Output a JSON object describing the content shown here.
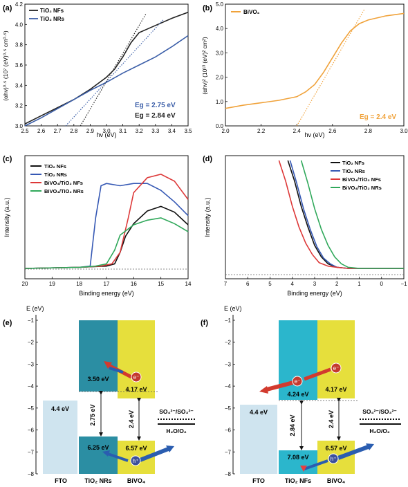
{
  "chart_data": [
    {
      "panel": "(a)",
      "type": "line",
      "xlabel": "hν (eV)",
      "ylabel": "(αhν)⁰·⁵ (10⁷ (eV)⁰·⁵ cm⁰·⁵)",
      "xlim": [
        2.5,
        3.5
      ],
      "ylim": [
        3.0,
        4.2
      ],
      "xticks": [
        "2.5",
        "2.6",
        "2.7",
        "2.8",
        "2.9",
        "3.0",
        "3.1",
        "3.2",
        "3.3",
        "3.4",
        "3.5"
      ],
      "yticks": [
        "3.0",
        "3.2",
        "3.4",
        "3.6",
        "3.8",
        "4.0",
        "4.2"
      ],
      "legend_position": "top-left",
      "series": [
        {
          "name": "TiO₂ NFs",
          "color": "#222222",
          "x": [
            2.5,
            2.6,
            2.7,
            2.8,
            2.9,
            3.0,
            3.05,
            3.1,
            3.15,
            3.2,
            3.3,
            3.4,
            3.5
          ],
          "y": [
            3.02,
            3.1,
            3.18,
            3.26,
            3.36,
            3.48,
            3.56,
            3.68,
            3.82,
            3.92,
            3.99,
            4.06,
            4.12
          ]
        },
        {
          "name": "TiO₂ NRs",
          "color": "#3b5ea8",
          "x": [
            2.5,
            2.6,
            2.7,
            2.8,
            2.9,
            3.0,
            3.1,
            3.2,
            3.3,
            3.4,
            3.5
          ],
          "y": [
            3.0,
            3.08,
            3.17,
            3.26,
            3.35,
            3.43,
            3.52,
            3.6,
            3.68,
            3.78,
            3.89
          ]
        }
      ],
      "tangents": [
        {
          "series": "TiO₂ NFs",
          "x": [
            2.84,
            3.24
          ],
          "y": [
            3.0,
            4.1
          ],
          "color": "#222222"
        },
        {
          "series": "TiO₂ NRs",
          "x": [
            2.75,
            3.35
          ],
          "y": [
            3.0,
            4.05
          ],
          "color": "#3b5ea8"
        }
      ],
      "annotations": [
        {
          "text": "Eg = 2.75 eV",
          "color": "#3b5ea8"
        },
        {
          "text": "Eg = 2.84 eV",
          "color": "#222222"
        }
      ]
    },
    {
      "panel": "(b)",
      "type": "line",
      "xlabel": "hν (eV)",
      "ylabel": "(αhν)² (10¹³ (eV)² cm²)",
      "xlim": [
        2.0,
        3.0
      ],
      "ylim": [
        0.0,
        5.0
      ],
      "xticks": [
        "2.0",
        "2.2",
        "2.4",
        "2.6",
        "2.8",
        "3.0"
      ],
      "yticks": [
        "0.0",
        "1.0",
        "2.0",
        "3.0",
        "4.0",
        "5.0"
      ],
      "legend_position": "top-left",
      "series": [
        {
          "name": "BiVO₄",
          "color": "#f0a23a",
          "x": [
            2.0,
            2.1,
            2.2,
            2.3,
            2.4,
            2.45,
            2.5,
            2.55,
            2.6,
            2.65,
            2.7,
            2.75,
            2.8,
            2.9,
            3.0
          ],
          "y": [
            0.72,
            0.85,
            0.95,
            1.05,
            1.2,
            1.4,
            1.7,
            2.2,
            2.8,
            3.4,
            3.9,
            4.2,
            4.35,
            4.52,
            4.62
          ]
        }
      ],
      "tangents": [
        {
          "series": "BiVO₄",
          "x": [
            2.4,
            2.78
          ],
          "y": [
            0.0,
            4.8
          ],
          "color": "#f0a23a"
        }
      ],
      "annotations": [
        {
          "text": "Eg = 2.4 eV",
          "color": "#f0a23a"
        }
      ]
    },
    {
      "panel": "(c)",
      "type": "line",
      "xlabel": "Binding energy (eV)",
      "ylabel": "Intensity (a.u.)",
      "xlim": [
        20,
        14
      ],
      "ylim": [
        0,
        1
      ],
      "x_reversed": true,
      "xticks": [
        "20",
        "19",
        "18",
        "17",
        "16",
        "15",
        "14"
      ],
      "legend_position": "top-left",
      "series": [
        {
          "name": "TiO₂ NFs",
          "color": "#111111",
          "x": [
            20,
            18,
            17,
            16.7,
            16.5,
            16.3,
            16.0,
            15.5,
            15.0,
            14.5,
            14.0
          ],
          "y": [
            0.06,
            0.07,
            0.08,
            0.1,
            0.2,
            0.34,
            0.45,
            0.56,
            0.6,
            0.55,
            0.44
          ]
        },
        {
          "name": "TiO₂ NRs",
          "color": "#3558b4",
          "x": [
            20,
            18,
            17.6,
            17.4,
            17.2,
            17.0,
            16.5,
            16.0,
            15.5,
            15.0,
            14.5,
            14.0
          ],
          "y": [
            0.06,
            0.07,
            0.08,
            0.5,
            0.78,
            0.8,
            0.78,
            0.8,
            0.8,
            0.74,
            0.64,
            0.52
          ]
        },
        {
          "name": "BiVO₄/TiO₂ NFs",
          "color": "#dd3838",
          "x": [
            20,
            18,
            17.2,
            16.8,
            16.5,
            16.2,
            16.0,
            15.5,
            15.0,
            14.5,
            14.0
          ],
          "y": [
            0.06,
            0.07,
            0.08,
            0.1,
            0.2,
            0.5,
            0.72,
            0.85,
            0.88,
            0.82,
            0.66
          ]
        },
        {
          "name": "BiVO₄/TiO₂ NRs",
          "color": "#2fa85a",
          "x": [
            20,
            18,
            17.4,
            17.0,
            16.7,
            16.5,
            16.0,
            15.5,
            15.0,
            14.5,
            14.0
          ],
          "y": [
            0.06,
            0.07,
            0.08,
            0.1,
            0.22,
            0.35,
            0.44,
            0.48,
            0.5,
            0.45,
            0.38
          ]
        }
      ]
    },
    {
      "panel": "(d)",
      "type": "line",
      "xlabel": "Binding energy (eV)",
      "ylabel": "Intensity (a.u.)",
      "xlim": [
        7,
        -1
      ],
      "ylim": [
        0,
        1
      ],
      "x_reversed": true,
      "xticks": [
        "7",
        "6",
        "5",
        "4",
        "3",
        "2",
        "1",
        "0",
        "−1"
      ],
      "legend_position": "top-right",
      "series": [
        {
          "name": "TiO₂ NFs",
          "color": "#111111",
          "x": [
            4.2,
            3.9,
            3.6,
            3.3,
            3.0,
            2.7,
            2.4,
            2.0,
            1.5,
            1.0,
            0.0,
            -1.0
          ],
          "y": [
            1.0,
            0.82,
            0.6,
            0.42,
            0.26,
            0.16,
            0.1,
            0.07,
            0.06,
            0.06,
            0.06,
            0.06
          ]
        },
        {
          "name": "TiO₂ NRs",
          "color": "#3558b4",
          "x": [
            4.1,
            3.8,
            3.5,
            3.2,
            2.9,
            2.6,
            2.3,
            2.0,
            1.5,
            1.0,
            0.0,
            -1.0
          ],
          "y": [
            1.0,
            0.8,
            0.58,
            0.4,
            0.25,
            0.15,
            0.1,
            0.07,
            0.06,
            0.06,
            0.06,
            0.06
          ]
        },
        {
          "name": "BiVO₄/TiO₂ NFs",
          "color": "#dd3838",
          "x": [
            4.6,
            4.3,
            4.0,
            3.7,
            3.4,
            3.1,
            2.8,
            2.4,
            2.0,
            1.5,
            0.0,
            -1.0
          ],
          "y": [
            1.0,
            0.82,
            0.6,
            0.42,
            0.28,
            0.18,
            0.11,
            0.08,
            0.07,
            0.06,
            0.06,
            0.06
          ]
        },
        {
          "name": "BiVO₄/TiO₂ NRs",
          "color": "#2fa85a",
          "x": [
            3.6,
            3.3,
            3.0,
            2.7,
            2.4,
            2.1,
            1.8,
            1.5,
            1.0,
            0.0,
            -1.0
          ],
          "y": [
            1.0,
            0.8,
            0.58,
            0.4,
            0.26,
            0.16,
            0.1,
            0.07,
            0.06,
            0.06,
            0.06
          ]
        }
      ]
    },
    {
      "panel": "(e)",
      "type": "diagram",
      "ylabel": "E (eV)",
      "ylim": [
        -8,
        -1
      ],
      "yticks": [
        "−1",
        "−2",
        "−3",
        "−4",
        "−5",
        "−6",
        "−7",
        "−8"
      ],
      "blocks": [
        {
          "label": "FTO",
          "top": -4.4,
          "bottom": -8,
          "color": "#cfe4ef",
          "value": "4.4 eV"
        },
        {
          "label": "TiO₂ NRs",
          "top": -1,
          "bottom": -3.5,
          "color": "#2b8ea3",
          "value_cb": "3.50 eV"
        },
        {
          "label": "TiO₂ NRs",
          "top": -6.25,
          "bottom": -8,
          "color": "#2b8ea3",
          "value_vb": "6.25 eV"
        },
        {
          "label": "BiVO₄",
          "top": -1,
          "bottom": -4.17,
          "color": "#e6df3c",
          "value_cb": "4.17 eV"
        },
        {
          "label": "BiVO₄",
          "top": -6.57,
          "bottom": -8,
          "color": "#e6df3c",
          "value_vb": "6.57 eV"
        }
      ],
      "gaps": [
        "2.75 eV",
        "2.4 eV"
      ],
      "redox_labels": [
        "SO₄²⁻/SO₃²⁻",
        "H₂O/O₂"
      ],
      "carriers": [
        "e⁻",
        "h⁺"
      ],
      "xlabels": [
        "FTO",
        "TiO₂ NRs",
        "BiVO₄"
      ]
    },
    {
      "panel": "(f)",
      "type": "diagram",
      "ylabel": "E (eV)",
      "ylim": [
        -8,
        -1
      ],
      "yticks": [
        "−1",
        "−2",
        "−3",
        "−4",
        "−5",
        "−6",
        "−7",
        "−8"
      ],
      "blocks": [
        {
          "label": "FTO",
          "top": -4.4,
          "bottom": -8,
          "color": "#cfe4ef",
          "value": "4.4 eV"
        },
        {
          "label": "TiO₂ NFs",
          "top": -1,
          "bottom": -4.24,
          "color": "#2bb6cc",
          "value_cb": "4.24 eV"
        },
        {
          "label": "TiO₂ NFs",
          "top": -7.08,
          "bottom": -8,
          "color": "#2bb6cc",
          "value_vb": "7.08 eV"
        },
        {
          "label": "BiVO₄",
          "top": -1,
          "bottom": -4.17,
          "color": "#e6df3c",
          "value_cb": "4.17 eV"
        },
        {
          "label": "BiVO₄",
          "top": -6.57,
          "bottom": -8,
          "color": "#e6df3c",
          "value_vb": "6.57 eV"
        }
      ],
      "gaps": [
        "2.84 eV",
        "2.4 eV"
      ],
      "redox_labels": [
        "SO₄²⁻/SO₃²⁻",
        "H₂O/O₂"
      ],
      "carriers": [
        "e⁻",
        "e⁻",
        "h⁺"
      ],
      "xlabels": [
        "FTO",
        "TiO₂ NFs",
        "BiVO₄"
      ]
    }
  ]
}
